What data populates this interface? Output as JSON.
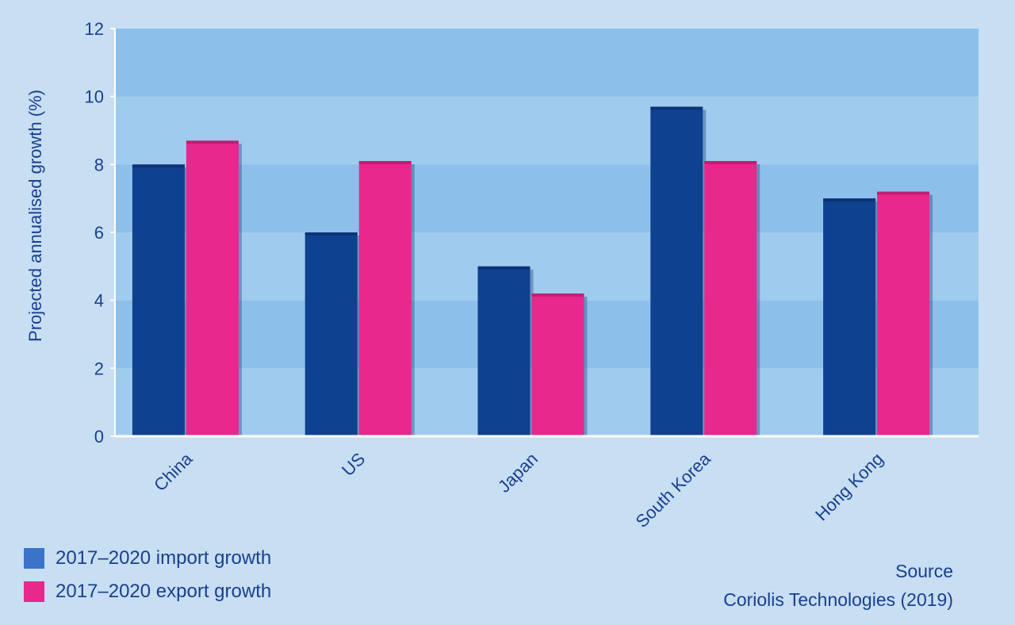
{
  "chart_data": {
    "type": "bar",
    "categories": [
      "China",
      "US",
      "Japan",
      "South Korea",
      "Hong Kong"
    ],
    "series": [
      {
        "name": "2017–2020 import growth",
        "values": [
          8.0,
          6.0,
          5.0,
          9.7,
          7.0
        ],
        "color": "#0f4191"
      },
      {
        "name": "2017–2020 export growth",
        "values": [
          8.7,
          8.1,
          4.2,
          8.1,
          7.2
        ],
        "color": "#e8288c"
      }
    ],
    "ylabel": "Projected annualised growth (%)",
    "xlabel": "",
    "ylim": [
      0,
      12
    ],
    "yticks": [
      0,
      2,
      4,
      6,
      8,
      10,
      12
    ],
    "legend_position": "bottom-left",
    "legend_swatch_colors": [
      "#3a73c8",
      "#e8288c"
    ],
    "band_colors": [
      "#9fcbee",
      "#8cc0ea"
    ],
    "grid": false
  },
  "source": {
    "label": "Source",
    "text": "Coriolis Technologies (2019)"
  }
}
